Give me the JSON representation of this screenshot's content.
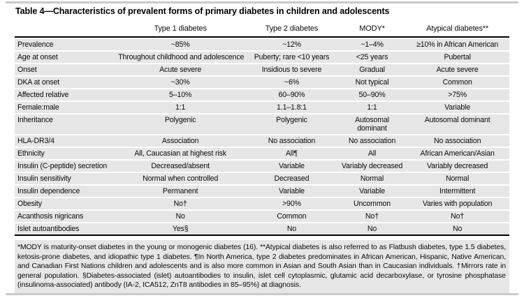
{
  "title": "Table 4—Characteristics of prevalent forms of primary diabetes in children and adolescents",
  "table": {
    "columns": [
      "",
      "Type 1 diabetes",
      "Type 2 diabetes",
      "MODY*",
      "Atypical diabetes**"
    ],
    "rows": [
      {
        "label": "Prevalence",
        "values": [
          "~85%",
          "~12%",
          "~1–4%",
          "≥10% in African American"
        ]
      },
      {
        "label": "Age at onset",
        "values": [
          "Throughout childhood and adolescence",
          "Puberty; rare <10 years",
          "<25 years",
          "Pubertal"
        ]
      },
      {
        "label": "Onset",
        "values": [
          "Acute severe",
          "Insidious to severe",
          "Gradual",
          "Acute severe"
        ]
      },
      {
        "label": "DKA at onset",
        "values": [
          "~30%",
          "~6%",
          "Not typical",
          "Common"
        ]
      },
      {
        "label": "Affected relative",
        "values": [
          "5–10%",
          "60–90%",
          "50–90%",
          ">75%"
        ]
      },
      {
        "label": "Female:male",
        "values": [
          "1:1",
          "1.1–1.8:1",
          "1:1",
          "Variable"
        ]
      },
      {
        "label": "Inheritance",
        "values": [
          "Polygenic",
          "Polygenic",
          "Autosomal dominant",
          "Autosomal dominant"
        ],
        "wrap": [
          2
        ]
      },
      {
        "label": "HLA-DR3/4",
        "values": [
          "Association",
          "No association",
          "No association",
          "No association"
        ]
      },
      {
        "label": "Ethnicity",
        "values": [
          "All, Caucasian at highest risk",
          "All¶",
          "All",
          "African American/Asian"
        ]
      },
      {
        "label": "Insulin (C-peptide) secretion",
        "values": [
          "Decreased/absent",
          "Variable",
          "Variably decreased",
          "Variably decreased"
        ]
      },
      {
        "label": "Insulin sensitivity",
        "values": [
          "Normal when controlled",
          "Decreased",
          "Normal",
          "Normal"
        ]
      },
      {
        "label": "Insulin dependence",
        "values": [
          "Permanent",
          "Variable",
          "Variable",
          "Intermittent"
        ]
      },
      {
        "label": "Obesity",
        "values": [
          "No†",
          ">90%",
          "Uncommon",
          "Varies with population"
        ]
      },
      {
        "label": "Acanthosis nigricans",
        "values": [
          "No",
          "Common",
          "No†",
          "No†"
        ]
      },
      {
        "label": "Islet autoantibodies",
        "values": [
          "Yes§",
          "No",
          "No",
          "No"
        ]
      }
    ]
  },
  "footnote": "*MODY is maturity-onset diabetes in the young or monogenic diabetes (16). **Atypical diabetes is also referred to as Flatbush diabetes, type 1.5 diabetes, ketosis-prone diabetes, and idiopathic type 1 diabetes. ¶In North America, type 2 diabetes predominates in African American, Hispanic, Native American, and Canadian First Nations children and adolescents and is also more common in Asian and South Asian than in Caucasian individuals. †Mirrors rate in general population. §Diabetes-associated (islet) autoantibodies to insulin, islet cell cytoplasmic, glutamic acid decarboxylase, or tyrosine phosphatase (insulinoma-associated) antibody (IA-2, ICA512, ZnT8 antibodies in 85–95%) at diagnosis.",
  "colors": {
    "row_background": "#e6e6e6",
    "rule_black": "#000000",
    "outer_rule": "#c9c9c9",
    "page_background": "#ffffff"
  }
}
